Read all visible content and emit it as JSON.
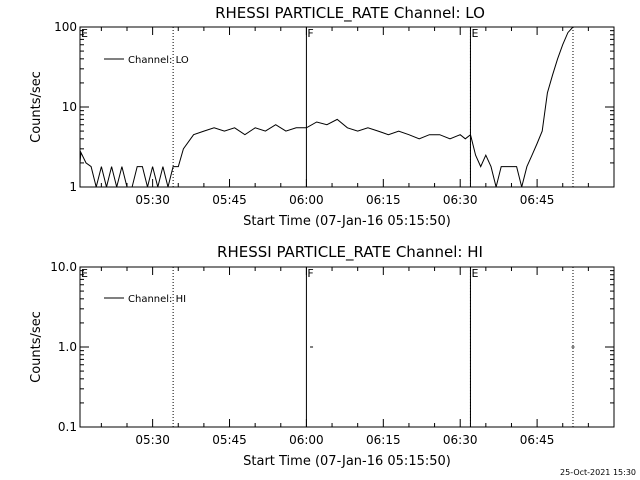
{
  "footer": {
    "timestamp": "25-Oct-2021 15:30"
  },
  "chart_data": [
    {
      "type": "line",
      "title": "RHESSI PARTICLE_RATE Channel: LO",
      "xlabel": "Start Time (07-Jan-16 05:15:50)",
      "ylabel": "Counts/sec",
      "yscale": "log",
      "ylim": [
        1,
        100
      ],
      "xlim": [
        "05:15:50",
        "07:00:00"
      ],
      "xticks": [
        "05:30",
        "05:45",
        "06:00",
        "06:15",
        "06:30",
        "06:45"
      ],
      "yticks": [
        "1",
        "10",
        "100"
      ],
      "grid": false,
      "legend": {
        "position": "top-left",
        "entries": [
          "Channel: LO"
        ]
      },
      "markers": [
        {
          "time": "05:15:50",
          "label": "E",
          "style": "solid"
        },
        {
          "time": "05:34",
          "label": "",
          "style": "dotted"
        },
        {
          "time": "06:00",
          "label": "F",
          "style": "solid"
        },
        {
          "time": "06:32",
          "label": "E",
          "style": "solid"
        },
        {
          "time": "06:32",
          "label": "",
          "style": "dotted"
        },
        {
          "time": "06:52",
          "label": "",
          "style": "dotted"
        }
      ],
      "series": [
        {
          "name": "Channel: LO",
          "x": [
            "05:15:50",
            "05:16",
            "05:17",
            "05:18",
            "05:19",
            "05:20",
            "05:21",
            "05:22",
            "05:23",
            "05:24",
            "05:25",
            "05:26",
            "05:27",
            "05:28",
            "05:29",
            "05:30",
            "05:31",
            "05:32",
            "05:33",
            "05:34",
            "05:35",
            "05:36",
            "05:38",
            "05:40",
            "05:42",
            "05:44",
            "05:46",
            "05:48",
            "05:50",
            "05:52",
            "05:54",
            "05:56",
            "05:58",
            "06:00",
            "06:02",
            "06:04",
            "06:06",
            "06:08",
            "06:10",
            "06:12",
            "06:14",
            "06:16",
            "06:18",
            "06:20",
            "06:22",
            "06:24",
            "06:26",
            "06:28",
            "06:30",
            "06:31",
            "06:32",
            "06:33",
            "06:34",
            "06:35",
            "06:36",
            "06:37",
            "06:38",
            "06:39",
            "06:40",
            "06:41",
            "06:42",
            "06:43",
            "06:44",
            "06:45",
            "06:46",
            "06:47",
            "06:48",
            "06:49",
            "06:50",
            "06:51",
            "06:52"
          ],
          "values": [
            2,
            2.7,
            2,
            1.8,
            1,
            1.8,
            1,
            1.8,
            1,
            1.8,
            1,
            1,
            1.8,
            1.8,
            1,
            1.8,
            1,
            1.8,
            1,
            1.8,
            1.8,
            3,
            4.5,
            5,
            5.5,
            5,
            5.5,
            4.5,
            5.5,
            5,
            6,
            5,
            5.5,
            5.5,
            6.5,
            6,
            7,
            5.5,
            5,
            5.5,
            5,
            4.5,
            5,
            4.5,
            4,
            4.5,
            4.5,
            4,
            4.5,
            4,
            4.5,
            2.5,
            1.8,
            2.5,
            1.8,
            1,
            1.8,
            1.8,
            1.8,
            1.8,
            1,
            1.8,
            2.5,
            3.5,
            5,
            15,
            25,
            40,
            60,
            85,
            100
          ]
        }
      ]
    },
    {
      "type": "line",
      "title": "RHESSI PARTICLE_RATE Channel: HI",
      "xlabel": "Start Time (07-Jan-16 05:15:50)",
      "ylabel": "Counts/sec",
      "yscale": "log",
      "ylim": [
        0.1,
        10
      ],
      "xlim": [
        "05:15:50",
        "07:00:00"
      ],
      "xticks": [
        "05:30",
        "05:45",
        "06:00",
        "06:15",
        "06:30",
        "06:45"
      ],
      "yticks": [
        "0.1",
        "1.0",
        "10.0"
      ],
      "grid": false,
      "legend": {
        "position": "top-left",
        "entries": [
          "Channel: HI"
        ]
      },
      "markers": [
        {
          "time": "05:15:50",
          "label": "E",
          "style": "solid"
        },
        {
          "time": "05:34",
          "label": "",
          "style": "dotted"
        },
        {
          "time": "06:00",
          "label": "F",
          "style": "solid"
        },
        {
          "time": "06:32",
          "label": "E",
          "style": "solid"
        },
        {
          "time": "06:32",
          "label": "",
          "style": "dotted"
        },
        {
          "time": "06:52",
          "label": "",
          "style": "dotted"
        }
      ],
      "series": [
        {
          "name": "Channel: HI",
          "x": [
            "06:01",
            "06:52"
          ],
          "values": [
            1.0,
            1.0
          ]
        }
      ]
    }
  ]
}
